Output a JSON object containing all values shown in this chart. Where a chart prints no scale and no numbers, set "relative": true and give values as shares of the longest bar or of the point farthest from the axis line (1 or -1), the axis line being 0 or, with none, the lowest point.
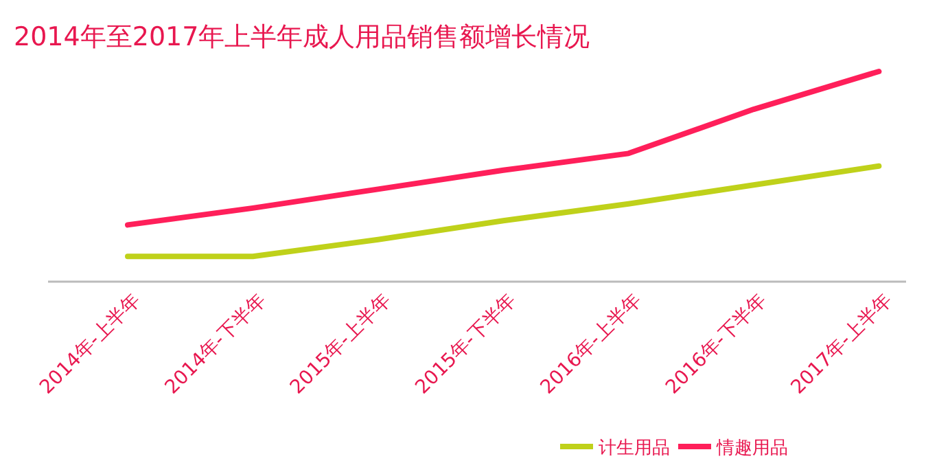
{
  "chart_data": {
    "type": "line",
    "title": "2014年至2017年上半年成人用品销售额增长情况",
    "relative": true,
    "categories": [
      "2014年-上半年",
      "2014年-下半年",
      "2015年-上半年",
      "2015年-下半年",
      "2016年-上半年",
      "2016年-下半年",
      "2017年-上半年"
    ],
    "series": [
      {
        "name": "计生用品",
        "color": "#bfd11a",
        "values": [
          0.12,
          0.12,
          0.2,
          0.29,
          0.37,
          0.46,
          0.55
        ]
      },
      {
        "name": "情趣用品",
        "color": "#ff1f5a",
        "values": [
          0.27,
          0.35,
          0.44,
          0.53,
          0.61,
          0.82,
          1
        ]
      }
    ],
    "legend": "bottom right",
    "grid": false,
    "marker": "none",
    "line_style": "solid"
  }
}
